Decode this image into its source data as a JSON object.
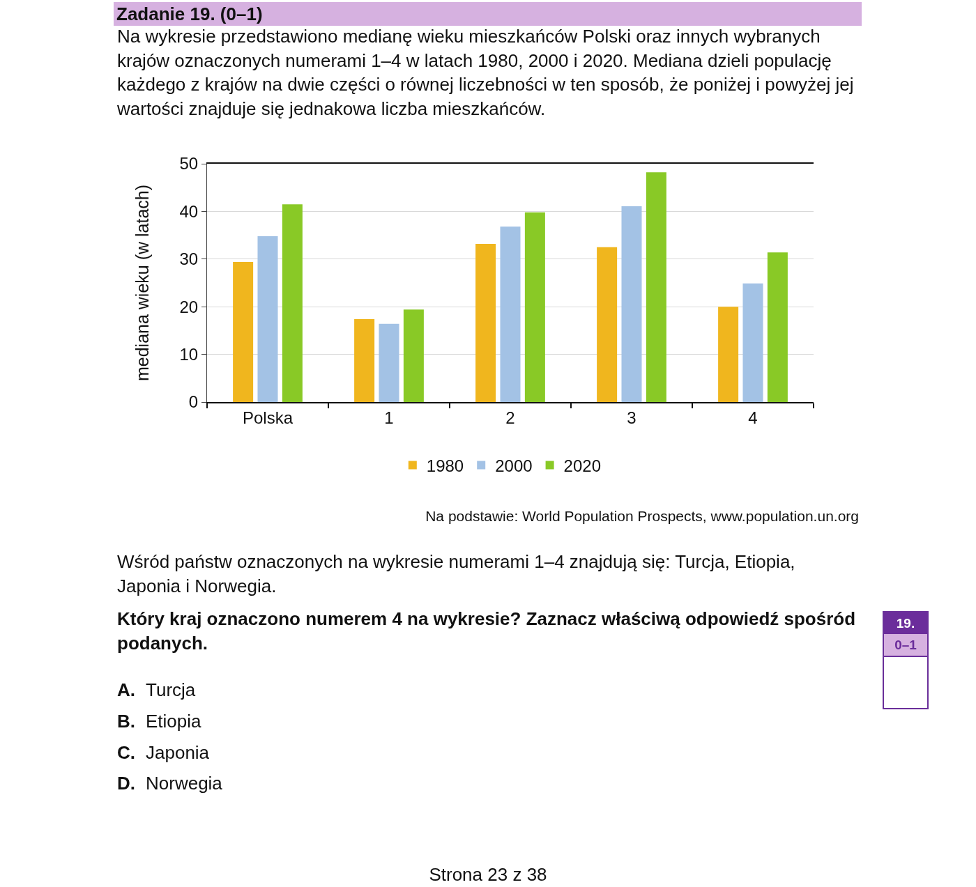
{
  "chart_data": {
    "type": "bar",
    "title": "Zadanie 19. (0–1)",
    "subtitle": "Na wykresie przedstawiono medianę wieku mieszkańców Polski oraz innych wybranych krajów oznaczonych numerami 1–4 w latach 1980, 2000 i 2020. Mediana dzieli populację każdego z krajów na dwie części o równej liczebności w ten sposób, że poniżej i powyżej jej wartości znajduje się jednakowa liczba mieszkańców.",
    "ylabel": "mediana wieku (w latach)",
    "categories": [
      "Polska",
      "1",
      "2",
      "3",
      "4"
    ],
    "series": [
      {
        "name": "1980",
        "color": "#f0b61e",
        "values": [
          29.4,
          17.4,
          33.2,
          32.5,
          20.0
        ]
      },
      {
        "name": "2000",
        "color": "#a3c2e5",
        "values": [
          34.8,
          16.4,
          36.8,
          41.1,
          24.9
        ]
      },
      {
        "name": "2020",
        "color": "#89c926",
        "values": [
          41.5,
          19.4,
          39.8,
          48.2,
          31.4
        ]
      }
    ],
    "ylim": [
      0,
      50
    ],
    "yticks": [
      0,
      10,
      20,
      30,
      40,
      50
    ],
    "grid": "y",
    "legend": "bottom",
    "annotations": [
      "Na podstawie: World Population Prospects, www.population.un.org",
      "Wśród państw oznaczonych na wykresie numerami 1–4 znajdują się: Turcja, Etiopia, Japonia i Norwegia.",
      "Który kraj oznaczono numerem 4 na wykresie? Zaznacz właściwą odpowiedź spośród podanych.",
      "A. Turcja",
      "B. Etiopia",
      "C. Japonia",
      "D. Norwegia",
      "19.",
      "0–1",
      "Strona 23 z 38"
    ]
  }
}
